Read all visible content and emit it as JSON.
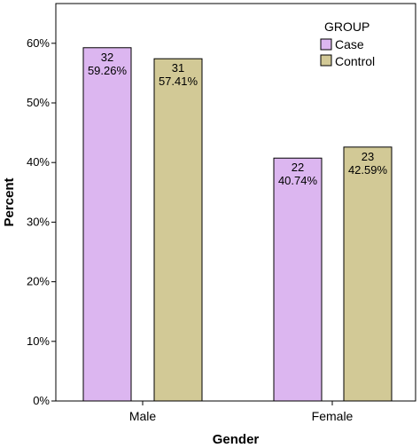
{
  "colors": {
    "case": "#dcb6f0",
    "control": "#d2c996",
    "stroke": "#000000"
  },
  "chart_data": {
    "type": "bar",
    "categories": [
      "Male",
      "Female"
    ],
    "series": [
      {
        "name": "Case",
        "values": [
          59.26,
          40.74
        ],
        "counts": [
          "32",
          "22"
        ],
        "pct_labels": [
          "59.26%",
          "40.74%"
        ]
      },
      {
        "name": "Control",
        "values": [
          57.41,
          42.59
        ],
        "counts": [
          "31",
          "23"
        ],
        "pct_labels": [
          "57.41%",
          "42.59%"
        ]
      }
    ],
    "xlabel": "Gender",
    "ylabel": "Percent",
    "ylim": [
      0,
      65
    ],
    "yticks": [
      0,
      10,
      20,
      30,
      40,
      50,
      60
    ],
    "ytick_labels": [
      "0%",
      "10%",
      "20%",
      "30%",
      "40%",
      "50%",
      "60%"
    ],
    "legend_title": "GROUP",
    "legend_position": "top-right",
    "grid": false
  }
}
